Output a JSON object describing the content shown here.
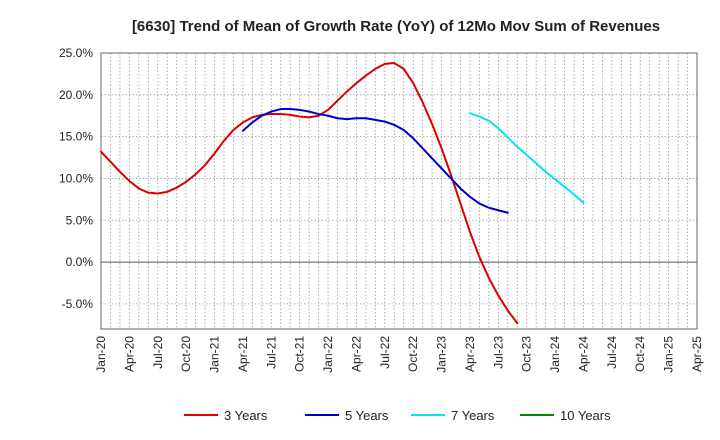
{
  "chart_data": {
    "type": "line",
    "title": "[6630]  Trend of Mean of Growth Rate (YoY) of 12Mo Mov Sum of Revenues",
    "xlabel": "",
    "ylabel": "",
    "ylim": [
      -8.0,
      25.0
    ],
    "y_ticks": [
      25.0,
      20.0,
      15.0,
      10.0,
      5.0,
      0.0,
      -5.0
    ],
    "y_tick_labels": [
      "25.0%",
      "20.0%",
      "15.0%",
      "10.0%",
      "5.0%",
      "0.0%",
      "-5.0%"
    ],
    "x_tick_labels": [
      "Jan-20",
      "Apr-20",
      "Jul-20",
      "Oct-20",
      "Jan-21",
      "Apr-21",
      "Jul-21",
      "Oct-21",
      "Jan-22",
      "Apr-22",
      "Jul-22",
      "Oct-22",
      "Jan-23",
      "Apr-23",
      "Jul-23",
      "Oct-23",
      "Jan-24",
      "Apr-24",
      "Jul-24",
      "Oct-24",
      "Jan-25",
      "Apr-25"
    ],
    "x_start": "Jan-20",
    "x_months_span": 63,
    "grid": true,
    "legend_position": "bottom",
    "series": [
      {
        "name": "3 Years",
        "color": "#dd0000",
        "start_month": 0,
        "values": [
          13.2,
          12.0,
          10.8,
          9.7,
          8.8,
          8.3,
          8.2,
          8.4,
          8.9,
          9.6,
          10.5,
          11.6,
          13.0,
          14.5,
          15.8,
          16.7,
          17.3,
          17.6,
          17.7,
          17.7,
          17.6,
          17.4,
          17.3,
          17.5,
          18.2,
          19.3,
          20.4,
          21.4,
          22.3,
          23.1,
          23.7,
          23.8,
          23.1,
          21.4,
          19.1,
          16.5,
          13.6,
          10.4,
          7.0,
          3.6,
          0.6,
          -1.9,
          -4.0,
          -5.8,
          -7.3
        ]
      },
      {
        "name": "5 Years",
        "color": "#0000cc",
        "start_month": 15,
        "values": [
          15.7,
          16.7,
          17.5,
          18.0,
          18.3,
          18.3,
          18.2,
          18.0,
          17.7,
          17.5,
          17.2,
          17.1,
          17.2,
          17.2,
          17.0,
          16.8,
          16.4,
          15.8,
          14.8,
          13.6,
          12.4,
          11.2,
          10.0,
          8.8,
          7.8,
          7.0,
          6.5,
          6.2,
          5.9
        ]
      },
      {
        "name": "7 Years",
        "color": "#00e5ee",
        "start_month": 39,
        "values": [
          17.8,
          17.4,
          16.9,
          16.0,
          14.9,
          13.8,
          12.8,
          11.8,
          10.8,
          9.9,
          9.0,
          8.1,
          7.1
        ]
      },
      {
        "name": "10 Years",
        "color": "#008800",
        "start_month": 0,
        "values": []
      }
    ]
  }
}
